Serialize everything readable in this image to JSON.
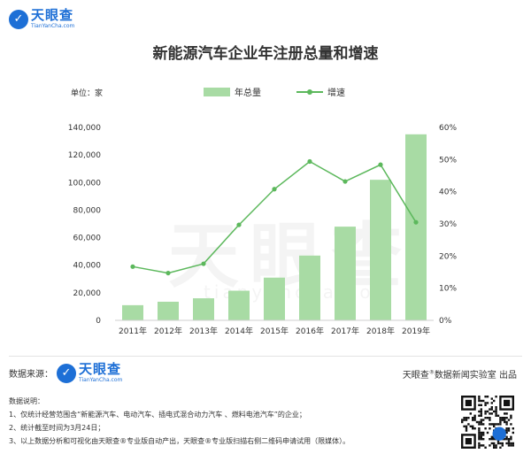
{
  "header": {
    "logo": {
      "icon": "tianyancha-logo-icon",
      "name": "天眼查",
      "domain": "TianYanCha.com"
    }
  },
  "title": "新能源汽车企业年注册总量和增速",
  "unit_label": "单位：家",
  "legend": {
    "bar": "年总量",
    "line": "增速"
  },
  "colors": {
    "bar": "#a8dba4",
    "line": "#5cb85c",
    "brand": "#1d6fd6"
  },
  "chart_data": {
    "type": "bar",
    "categories": [
      "2011年",
      "2012年",
      "2013年",
      "2014年",
      "2015年",
      "2016年",
      "2017年",
      "2018年",
      "2019年"
    ],
    "series": [
      {
        "name": "年总量",
        "type": "bar",
        "axis": "left",
        "values": [
          11000,
          13500,
          16000,
          21500,
          31000,
          47000,
          68000,
          102000,
          135000
        ]
      },
      {
        "name": "增速",
        "type": "line",
        "axis": "right",
        "values": [
          16.7,
          14.7,
          17.6,
          29.7,
          40.8,
          49.4,
          43.2,
          48.4,
          30.5
        ]
      }
    ],
    "y_left": {
      "min": 0,
      "max": 140000,
      "ticks": [
        "0",
        "20,000",
        "40,000",
        "60,000",
        "80,000",
        "100,000",
        "120,000",
        "140,000"
      ]
    },
    "y_right": {
      "min": 0,
      "max": 60,
      "ticks": [
        "0%",
        "10%",
        "20%",
        "30%",
        "40%",
        "50%",
        "60%"
      ]
    },
    "grid": false,
    "legend_position": "top"
  },
  "watermark": {
    "text": "天眼查",
    "sub": "tianyancha.com"
  },
  "footer": {
    "source_label": "数据来源：",
    "source_logo": {
      "name": "天眼查",
      "domain": "TianYanCha.com"
    },
    "credit_prefix": "天眼查",
    "credit_suffix": "数据新闻实验室 出品",
    "notes_title": "数据说明：",
    "notes": [
      "1、仅统计经营范围含“新能源汽车、电动汽车、插电式混合动力汽车 、燃料电池汽车”的企业；",
      "2、统计截至时间为3月24日；",
      "3、以上数据分析和可视化由天眼查®专业版自动产出，天眼查®专业版扫描右侧二维码申请试用（限媒体）。"
    ],
    "qr": {
      "icon": "qr-code-icon"
    }
  }
}
